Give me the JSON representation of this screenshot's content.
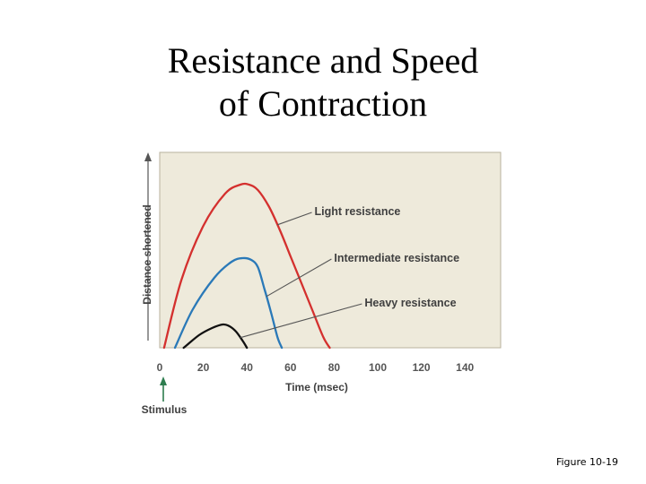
{
  "slide": {
    "title_line1": "Resistance and Speed",
    "title_line2": "of Contraction",
    "figure_ref": "Figure 10-19"
  },
  "chart_data": {
    "type": "line",
    "title": "",
    "xlabel": "Time (msec)",
    "ylabel": "Distance shortened",
    "xlim": [
      0,
      158
    ],
    "ylim": [
      0,
      1.0
    ],
    "x_ticks": [
      0,
      20,
      40,
      60,
      80,
      100,
      120,
      140
    ],
    "x_tick_labels": [
      "0",
      "20",
      "40",
      "60",
      "80",
      "100",
      "120",
      "140"
    ],
    "grid": false,
    "background": "#eeeadb",
    "stimulus": {
      "label": "Stimulus",
      "x": 0,
      "color": "#2e7d4f"
    },
    "series": [
      {
        "name": "Light resistance",
        "color": "#d4302e",
        "x": [
          2,
          10,
          20,
          30,
          37,
          41,
          45,
          50,
          55,
          60,
          65,
          70,
          75,
          78
        ],
        "y": [
          0.0,
          0.38,
          0.68,
          0.86,
          0.91,
          0.91,
          0.88,
          0.79,
          0.66,
          0.51,
          0.36,
          0.21,
          0.06,
          0.0
        ]
      },
      {
        "name": "Intermediate resistance",
        "color": "#2a79b8",
        "x": [
          7,
          15,
          25,
          33,
          38,
          42,
          45,
          48,
          51,
          54,
          56
        ],
        "y": [
          0.0,
          0.21,
          0.39,
          0.48,
          0.5,
          0.49,
          0.45,
          0.33,
          0.2,
          0.06,
          0.0
        ]
      },
      {
        "name": "Heavy resistance",
        "color": "#111111",
        "x": [
          11,
          18,
          24,
          29,
          32,
          35,
          38,
          40
        ],
        "y": [
          0.0,
          0.07,
          0.11,
          0.13,
          0.12,
          0.09,
          0.04,
          0.0
        ]
      }
    ],
    "annotations": [
      {
        "text": "Light resistance",
        "series": 0,
        "point_x": 54,
        "label_x": 71,
        "label_y": 0.76
      },
      {
        "text": "Intermediate resistance",
        "series": 1,
        "point_x": 49,
        "label_x": 80,
        "label_y": 0.5
      },
      {
        "text": "Heavy resistance",
        "series": 2,
        "point_x": 37,
        "label_x": 94,
        "label_y": 0.25
      }
    ]
  }
}
